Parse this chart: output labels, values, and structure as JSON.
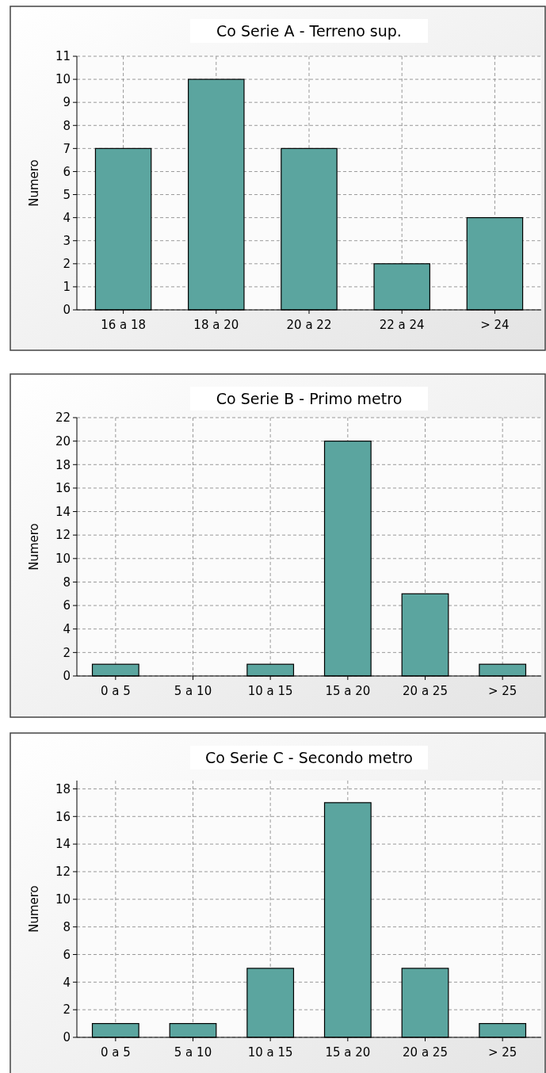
{
  "chart_data": [
    {
      "type": "bar",
      "title": "Co Serie A - Terreno sup.",
      "ylabel": "Numero",
      "categories": [
        "16 a 18",
        "18 a 20",
        "20 a 22",
        "22 a 24",
        "> 24"
      ],
      "values": [
        7,
        10,
        7,
        2,
        4
      ],
      "color": "#5ba59f",
      "ylim": [
        0,
        11
      ],
      "yticks": [
        0,
        1,
        2,
        3,
        4,
        5,
        6,
        7,
        8,
        9,
        10,
        11
      ],
      "grid": true
    },
    {
      "type": "bar",
      "title": "Co Serie B - Primo metro",
      "ylabel": "Numero",
      "categories": [
        "0 a 5",
        "5 a 10",
        "10 a 15",
        "15 a 20",
        "20 a 25",
        "> 25"
      ],
      "values": [
        1,
        0,
        1,
        20,
        7,
        1
      ],
      "color": "#5ba59f",
      "ylim": [
        0,
        22
      ],
      "yticks": [
        0,
        2,
        4,
        6,
        8,
        10,
        12,
        14,
        16,
        18,
        20,
        22
      ],
      "grid": true
    },
    {
      "type": "bar",
      "title": "Co Serie C - Secondo metro",
      "ylabel": "Numero",
      "categories": [
        "0 a 5",
        "5 a 10",
        "10 a 15",
        "15 a 20",
        "20 a 25",
        "> 25"
      ],
      "values": [
        1,
        1,
        5,
        17,
        5,
        1
      ],
      "color": "#5ba59f",
      "ylim": [
        0,
        18.6
      ],
      "yticks": [
        0,
        2,
        4,
        6,
        8,
        10,
        12,
        14,
        16,
        18
      ],
      "grid": true
    }
  ]
}
